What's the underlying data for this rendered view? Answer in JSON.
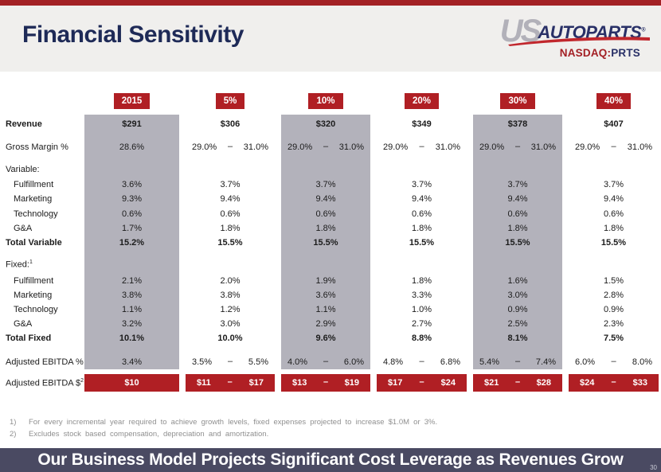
{
  "header": {
    "title": "Financial Sensitivity"
  },
  "logo": {
    "us": "US",
    "autoparts": "AUTOPARTS",
    "registered": "®",
    "ticker_exchange": "NASDAQ:",
    "ticker_symbol": "PRTS"
  },
  "table": {
    "range_separator": "–",
    "columns": [
      {
        "id": "y2015",
        "label": "2015",
        "shaded": true
      },
      {
        "id": "g5",
        "label": "5%",
        "shaded": false
      },
      {
        "id": "g10",
        "label": "10%",
        "shaded": true
      },
      {
        "id": "g20",
        "label": "20%",
        "shaded": false
      },
      {
        "id": "g30",
        "label": "30%",
        "shaded": true
      },
      {
        "id": "g40",
        "label": "40%",
        "shaded": false
      }
    ],
    "rows": [
      {
        "id": "revenue",
        "label": "Revenue",
        "sup": "",
        "style": "bold",
        "cells": [
          {
            "v": "$291"
          },
          {
            "v": "$306"
          },
          {
            "v": "$320"
          },
          {
            "v": "$349"
          },
          {
            "v": "$378"
          },
          {
            "v": "$407"
          }
        ]
      },
      {
        "id": "gross-margin",
        "label": "Gross Margin %",
        "sup": "",
        "style": "plain",
        "cells": [
          {
            "v": "28.6%"
          },
          {
            "lo": "29.0%",
            "hi": "31.0%"
          },
          {
            "lo": "29.0%",
            "hi": "31.0%"
          },
          {
            "lo": "29.0%",
            "hi": "31.0%"
          },
          {
            "lo": "29.0%",
            "hi": "31.0%"
          },
          {
            "lo": "29.0%",
            "hi": "31.0%"
          }
        ]
      },
      {
        "id": "variable-header",
        "label": "Variable:",
        "sup": "",
        "style": "plain",
        "cells": [
          null,
          null,
          null,
          null,
          null,
          null
        ]
      },
      {
        "id": "var-fulfillment",
        "label": "Fulfillment",
        "sup": "",
        "style": "indent",
        "cells": [
          {
            "v": "3.6%"
          },
          {
            "v": "3.7%"
          },
          {
            "v": "3.7%"
          },
          {
            "v": "3.7%"
          },
          {
            "v": "3.7%"
          },
          {
            "v": "3.7%"
          }
        ]
      },
      {
        "id": "var-marketing",
        "label": "Marketing",
        "sup": "",
        "style": "indent",
        "cells": [
          {
            "v": "9.3%"
          },
          {
            "v": "9.4%"
          },
          {
            "v": "9.4%"
          },
          {
            "v": "9.4%"
          },
          {
            "v": "9.4%"
          },
          {
            "v": "9.4%"
          }
        ]
      },
      {
        "id": "var-technology",
        "label": "Technology",
        "sup": "",
        "style": "indent",
        "cells": [
          {
            "v": "0.6%"
          },
          {
            "v": "0.6%"
          },
          {
            "v": "0.6%"
          },
          {
            "v": "0.6%"
          },
          {
            "v": "0.6%"
          },
          {
            "v": "0.6%"
          }
        ]
      },
      {
        "id": "var-ga",
        "label": "G&A",
        "sup": "",
        "style": "indent",
        "cells": [
          {
            "v": "1.7%"
          },
          {
            "v": "1.8%"
          },
          {
            "v": "1.8%"
          },
          {
            "v": "1.8%"
          },
          {
            "v": "1.8%"
          },
          {
            "v": "1.8%"
          }
        ]
      },
      {
        "id": "total-variable",
        "label": "Total Variable",
        "sup": "",
        "style": "bold",
        "cells": [
          {
            "v": "15.2%"
          },
          {
            "v": "15.5%"
          },
          {
            "v": "15.5%"
          },
          {
            "v": "15.5%"
          },
          {
            "v": "15.5%"
          },
          {
            "v": "15.5%"
          }
        ]
      },
      {
        "id": "fixed-header",
        "label": "Fixed:",
        "sup": "1",
        "style": "plain",
        "cells": [
          null,
          null,
          null,
          null,
          null,
          null
        ]
      },
      {
        "id": "fix-fulfillment",
        "label": "Fulfillment",
        "sup": "",
        "style": "indent",
        "cells": [
          {
            "v": "2.1%"
          },
          {
            "v": "2.0%"
          },
          {
            "v": "1.9%"
          },
          {
            "v": "1.8%"
          },
          {
            "v": "1.6%"
          },
          {
            "v": "1.5%"
          }
        ]
      },
      {
        "id": "fix-marketing",
        "label": "Marketing",
        "sup": "",
        "style": "indent",
        "cells": [
          {
            "v": "3.8%"
          },
          {
            "v": "3.8%"
          },
          {
            "v": "3.6%"
          },
          {
            "v": "3.3%"
          },
          {
            "v": "3.0%"
          },
          {
            "v": "2.8%"
          }
        ]
      },
      {
        "id": "fix-technology",
        "label": "Technology",
        "sup": "",
        "style": "indent",
        "cells": [
          {
            "v": "1.1%"
          },
          {
            "v": "1.2%"
          },
          {
            "v": "1.1%"
          },
          {
            "v": "1.0%"
          },
          {
            "v": "0.9%"
          },
          {
            "v": "0.9%"
          }
        ]
      },
      {
        "id": "fix-ga",
        "label": "G&A",
        "sup": "",
        "style": "indent",
        "cells": [
          {
            "v": "3.2%"
          },
          {
            "v": "3.0%"
          },
          {
            "v": "2.9%"
          },
          {
            "v": "2.7%"
          },
          {
            "v": "2.5%"
          },
          {
            "v": "2.3%"
          }
        ]
      },
      {
        "id": "total-fixed",
        "label": "Total Fixed",
        "sup": "",
        "style": "bold",
        "cells": [
          {
            "v": "10.1%"
          },
          {
            "v": "10.0%"
          },
          {
            "v": "9.6%"
          },
          {
            "v": "8.8%"
          },
          {
            "v": "8.1%"
          },
          {
            "v": "7.5%"
          }
        ]
      },
      {
        "id": "ebitda-pct",
        "label": "Adjusted EBITDA %",
        "sup": "",
        "style": "plain",
        "cells": [
          {
            "v": "3.4%"
          },
          {
            "lo": "3.5%",
            "hi": "5.5%"
          },
          {
            "lo": "4.0%",
            "hi": "6.0%"
          },
          {
            "lo": "4.8%",
            "hi": "6.8%"
          },
          {
            "lo": "5.4%",
            "hi": "7.4%"
          },
          {
            "lo": "6.0%",
            "hi": "8.0%"
          }
        ]
      },
      {
        "id": "ebitda-dollar",
        "label": "Adjusted EBITDA $",
        "sup": "2",
        "style": "plain",
        "variant": "red",
        "cells": [
          {
            "v": "$10"
          },
          {
            "lo": "$11",
            "hi": "$17"
          },
          {
            "lo": "$13",
            "hi": "$19"
          },
          {
            "lo": "$17",
            "hi": "$24"
          },
          {
            "lo": "$21",
            "hi": "$28"
          },
          {
            "lo": "$24",
            "hi": "$33"
          }
        ]
      }
    ]
  },
  "footnotes": [
    {
      "num": "1)",
      "text": "For every incremental year required to achieve growth levels, fixed expenses projected to increase $1.0M or 3%."
    },
    {
      "num": "2)",
      "text": "Excludes stock based compensation, depreciation and amortization."
    }
  ],
  "banner": {
    "text": "Our Business Model Projects Significant Cost Leverage as Revenues Grow",
    "page_number": "30"
  },
  "colors": {
    "accent_red": "#b01f24",
    "top_bar_red": "#a32125",
    "shaded_column_gray": "#b3b2bb",
    "banner_slate": "#4a4a62",
    "title_navy": "#1e2a57",
    "logo_gray": "#b2b1b9",
    "logo_navy": "#293067"
  }
}
